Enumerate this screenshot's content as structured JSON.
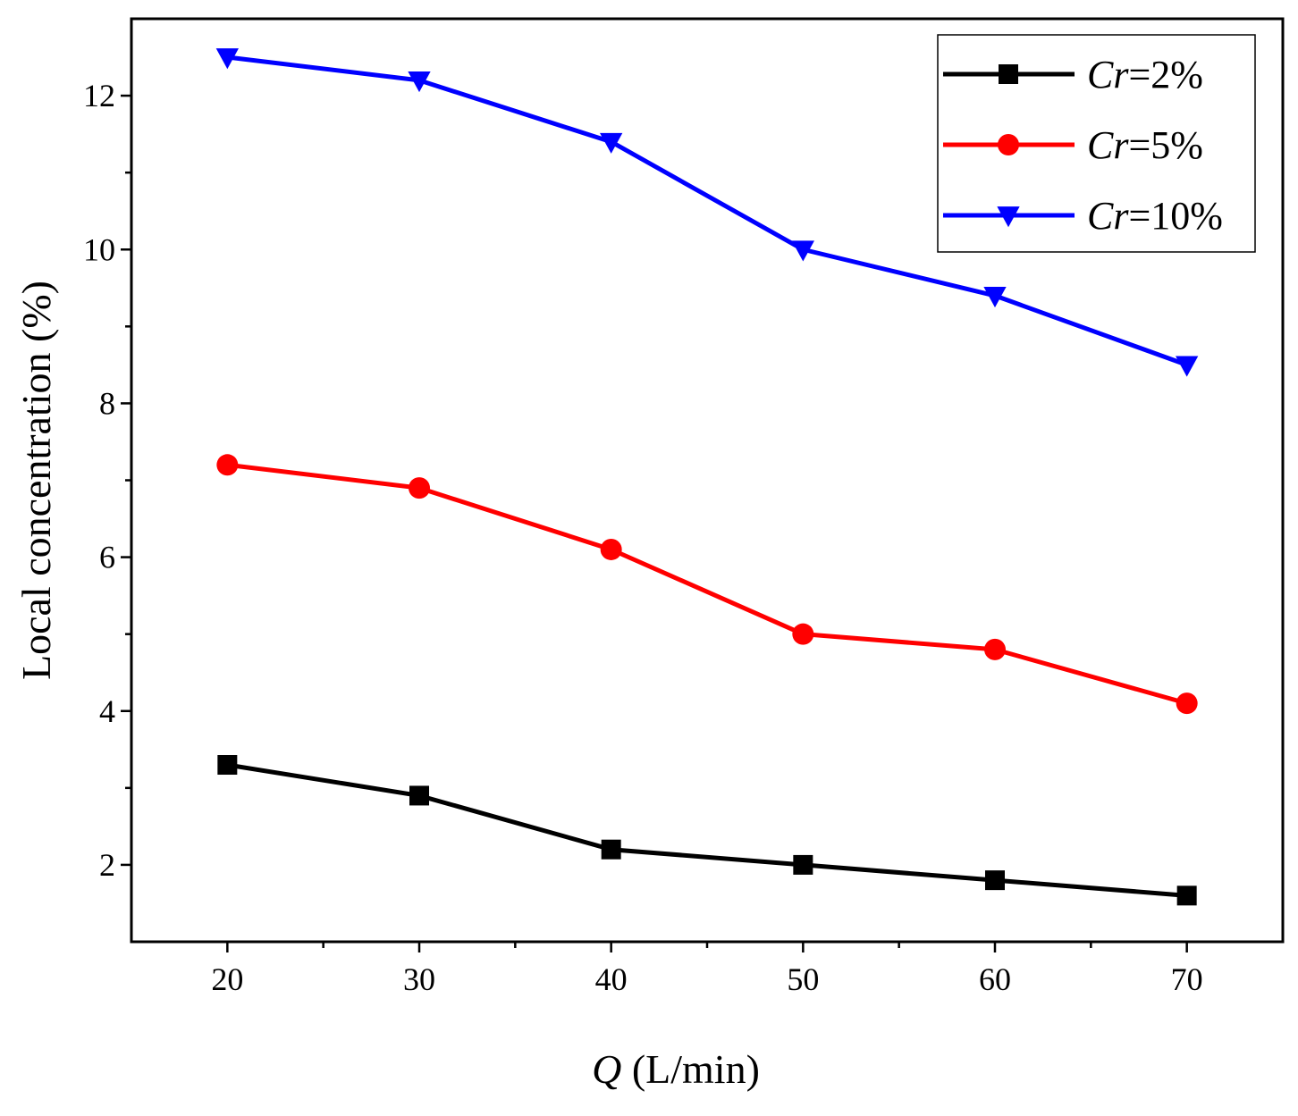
{
  "chart_data": {
    "type": "line",
    "title": "",
    "xlabel": {
      "italic": "Q",
      "rest": " (L/min)"
    },
    "ylabel": "Local concentration (%)",
    "x": [
      20,
      30,
      40,
      50,
      60,
      70
    ],
    "xlim": [
      15,
      75
    ],
    "ylim": [
      1,
      13
    ],
    "xticks": [
      20,
      30,
      40,
      50,
      60,
      70
    ],
    "xminor": [
      25,
      35,
      45,
      55,
      65
    ],
    "yticks": [
      2,
      4,
      6,
      8,
      10,
      12
    ],
    "yminor": [
      3,
      5,
      7,
      9,
      11
    ],
    "grid": false,
    "legend_position": "top-right",
    "series": [
      {
        "name": "Cr=2%",
        "name_italic": "Cr",
        "name_rest": "=2%",
        "color": "#000000",
        "marker": "square",
        "values": [
          3.3,
          2.9,
          2.2,
          2.0,
          1.8,
          1.6
        ]
      },
      {
        "name": "Cr=5%",
        "name_italic": "Cr",
        "name_rest": "=5%",
        "color": "#ff0000",
        "marker": "circle",
        "values": [
          7.2,
          6.9,
          6.1,
          5.0,
          4.8,
          4.1
        ]
      },
      {
        "name": "Cr=10%",
        "name_italic": "Cr",
        "name_rest": "=10%",
        "color": "#0000ff",
        "marker": "triangle-down",
        "values": [
          12.5,
          12.2,
          11.4,
          10.0,
          9.4,
          8.5
        ]
      }
    ]
  }
}
